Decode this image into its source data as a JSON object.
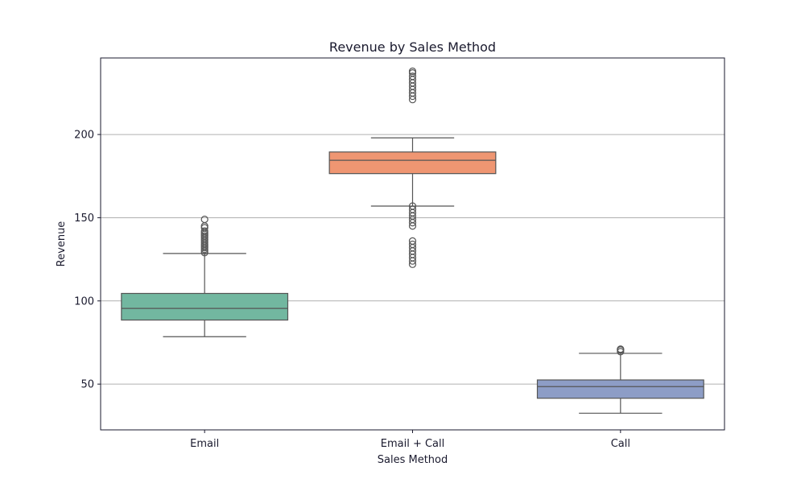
{
  "chart_data": {
    "type": "box",
    "title": "Revenue by Sales Method",
    "xlabel": "Sales Method",
    "ylabel": "Revenue",
    "ylim": [
      22.5,
      246
    ],
    "yticks": [
      50,
      100,
      150,
      200
    ],
    "grid": "horizontal",
    "categories": [
      "Email",
      "Email + Call",
      "Call"
    ],
    "boxes": [
      {
        "name": "Email",
        "color": "#72b7a0",
        "whisker_low": 78.5,
        "q1": 88.5,
        "median": 95.5,
        "q3": 104.5,
        "whisker_high": 128.5,
        "outliers": [
          129,
          130,
          131,
          132,
          133,
          134,
          135,
          136,
          137,
          138,
          139,
          140,
          141,
          142,
          144,
          145,
          149
        ]
      },
      {
        "name": "Email + Call",
        "color": "#ef9672",
        "whisker_low": 157,
        "q1": 176.5,
        "median": 184.5,
        "q3": 189.5,
        "whisker_high": 198,
        "outliers": [
          122,
          124,
          126,
          128,
          130,
          132,
          134,
          136,
          145,
          147,
          149,
          151,
          153,
          155,
          157,
          221,
          223,
          225,
          227,
          229,
          231,
          233,
          235,
          237,
          238
        ]
      },
      {
        "name": "Call",
        "color": "#8d9dc6",
        "whisker_low": 32.5,
        "q1": 41.5,
        "median": 48.5,
        "q3": 52.5,
        "whisker_high": 68.5,
        "outliers": [
          69.5,
          70.5,
          71
        ]
      }
    ]
  }
}
